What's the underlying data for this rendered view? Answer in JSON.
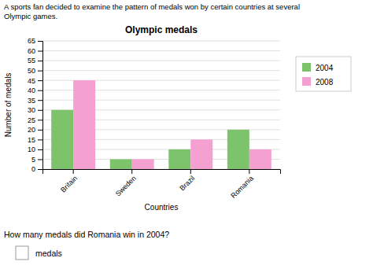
{
  "chart_data": {
    "type": "bar",
    "title": "Olympic medals",
    "x_label": "Countries",
    "y_label": "Number of medals",
    "categories": [
      "Britain",
      "Sweden",
      "Brazil",
      "Romania"
    ],
    "series": [
      {
        "name": "2004",
        "color": "#7dc36b",
        "values": [
          30,
          5,
          10,
          20
        ]
      },
      {
        "name": "2008",
        "color": "#f4a0d0",
        "values": [
          45,
          5,
          15,
          10
        ]
      }
    ],
    "ylim": [
      0,
      65
    ],
    "yticks": [
      0,
      5,
      10,
      15,
      20,
      25,
      30,
      35,
      40,
      45,
      50,
      55,
      60,
      65
    ],
    "grid": true,
    "legend": "right",
    "annotations": [
      "A sports fan decided to examine the pattern of medals won by certain countries at several",
      "Olympic games.",
      "How many medals did Romania win in 2004?",
      "medals"
    ]
  }
}
